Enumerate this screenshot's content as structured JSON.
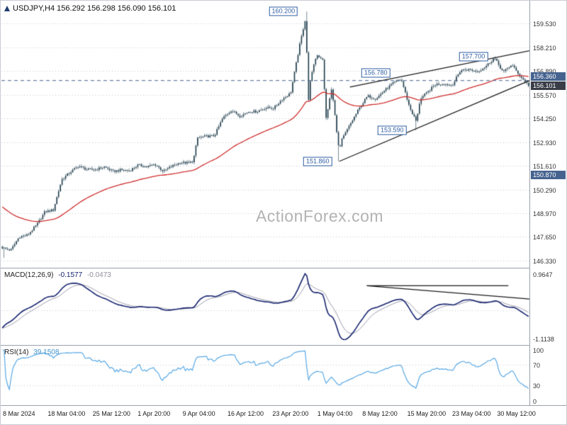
{
  "header": {
    "title": "USDJPY,H4 156.292 156.298 156.090 156.101"
  },
  "watermark": "ActionForex.com",
  "indicators": {
    "macd": {
      "label": "MACD(12,26,9)",
      "value_main": "-0.1577",
      "value_signal": "-0.0473"
    },
    "rsi": {
      "label": "RSI(14)",
      "value": "39.1508"
    }
  },
  "chart_data": {
    "type": "candlestick",
    "symbol": "USDJPY",
    "timeframe": "H4",
    "current_ohlc": {
      "open": 156.292,
      "high": 156.298,
      "low": 156.09,
      "close": 156.101
    },
    "x_labels": [
      "8 Mar 2024",
      "18 Mar 04:00",
      "25 Mar 12:00",
      "1 Apr 20:00",
      "9 Apr 04:00",
      "16 Apr 12:00",
      "23 Apr 20:00",
      "1 May 04:00",
      "8 May 12:00",
      "15 May 20:00",
      "23 May 04:00",
      "30 May 12:00"
    ],
    "y_ticks": [
      "159.530",
      "158.210",
      "156.890",
      "155.570",
      "154.250",
      "152.930",
      "151.610",
      "150.290",
      "148.970",
      "147.650",
      "146.330"
    ],
    "y_range": [
      146.09,
      160.61
    ],
    "dashed_level": 156.36,
    "axis_boxes": [
      {
        "label": "156.360",
        "price": 156.36,
        "dy": -6,
        "bg": "#46638f"
      },
      {
        "label": "156.101",
        "price": 156.36,
        "dy": 7,
        "bg": "#383d47"
      },
      {
        "label": "150.870",
        "price": 150.87,
        "dy": -6,
        "bg": "#46638f"
      }
    ],
    "annotations": [
      {
        "label": "160.200",
        "f": 0.534,
        "price": 160.2
      },
      {
        "label": "157.700",
        "f": 0.894,
        "price": 157.7
      },
      {
        "label": "156.780",
        "f": 0.709,
        "price": 156.78
      },
      {
        "label": "153.590",
        "f": 0.74,
        "price": 153.59
      },
      {
        "label": "151.860",
        "f": 0.599,
        "price": 151.86
      }
    ],
    "trendlines": [
      {
        "f1": 0.64,
        "p1": 151.86,
        "f2": 1.005,
        "p2": 156.42
      },
      {
        "f1": 0.66,
        "p1": 156.0,
        "f2": 1.005,
        "p2": 158.05
      }
    ],
    "price_anchors": [
      [
        0.0,
        147.05
      ],
      [
        0.016,
        146.9
      ],
      [
        0.032,
        147.65
      ],
      [
        0.048,
        147.75
      ],
      [
        0.065,
        148.3
      ],
      [
        0.081,
        149.05
      ],
      [
        0.097,
        149.15
      ],
      [
        0.113,
        150.85
      ],
      [
        0.129,
        151.25
      ],
      [
        0.145,
        151.6
      ],
      [
        0.161,
        151.4
      ],
      [
        0.177,
        151.4
      ],
      [
        0.194,
        151.55
      ],
      [
        0.21,
        151.3
      ],
      [
        0.226,
        151.38
      ],
      [
        0.242,
        151.35
      ],
      [
        0.258,
        151.65
      ],
      [
        0.274,
        151.55
      ],
      [
        0.29,
        151.7
      ],
      [
        0.306,
        151.3
      ],
      [
        0.323,
        151.6
      ],
      [
        0.339,
        151.8
      ],
      [
        0.355,
        151.76
      ],
      [
        0.363,
        151.9
      ],
      [
        0.371,
        153.17
      ],
      [
        0.387,
        153.25
      ],
      [
        0.403,
        153.28
      ],
      [
        0.419,
        154.27
      ],
      [
        0.435,
        154.7
      ],
      [
        0.452,
        154.38
      ],
      [
        0.468,
        154.63
      ],
      [
        0.484,
        154.64
      ],
      [
        0.5,
        154.84
      ],
      [
        0.516,
        154.82
      ],
      [
        0.532,
        155.33
      ],
      [
        0.548,
        155.66
      ],
      [
        0.565,
        158.33
      ],
      [
        0.577,
        159.95
      ],
      [
        0.581,
        154.9
      ],
      [
        0.585,
        156.35
      ],
      [
        0.597,
        157.8
      ],
      [
        0.609,
        157.55
      ],
      [
        0.615,
        154.2
      ],
      [
        0.626,
        155.95
      ],
      [
        0.64,
        152.4
      ],
      [
        0.645,
        153.05
      ],
      [
        0.661,
        153.92
      ],
      [
        0.677,
        154.75
      ],
      [
        0.694,
        155.5
      ],
      [
        0.71,
        155.35
      ],
      [
        0.726,
        155.8
      ],
      [
        0.742,
        156.2
      ],
      [
        0.758,
        156.45
      ],
      [
        0.774,
        154.85
      ],
      [
        0.787,
        154.05
      ],
      [
        0.794,
        155.35
      ],
      [
        0.806,
        155.65
      ],
      [
        0.823,
        156.15
      ],
      [
        0.839,
        156.18
      ],
      [
        0.855,
        156.1
      ],
      [
        0.871,
        156.94
      ],
      [
        0.887,
        156.98
      ],
      [
        0.903,
        156.86
      ],
      [
        0.919,
        157.16
      ],
      [
        0.935,
        157.62
      ],
      [
        0.952,
        156.82
      ],
      [
        0.968,
        157.25
      ],
      [
        0.984,
        156.6
      ],
      [
        1.0,
        156.1
      ]
    ],
    "wick_overrides": [
      {
        "f": 0.004,
        "low": 146.48
      },
      {
        "f": 0.577,
        "high": 160.2
      },
      {
        "f": 0.64,
        "low": 151.86
      },
      {
        "f": 0.787,
        "low": 153.59
      },
      {
        "f": 0.935,
        "high": 157.71
      },
      {
        "f": 0.999,
        "low": 156.09
      }
    ],
    "macd_axis_labels": [
      "0.9647",
      "-1.1138"
    ],
    "macd_trendlines": [
      {
        "x1": 0.692,
        "y1": 0.225,
        "x2": 0.96,
        "y2": 0.225
      },
      {
        "x1": 0.692,
        "y1": 0.225,
        "x2": 1.0,
        "y2": 0.4
      }
    ],
    "rsi_ticks": [
      100,
      70,
      30,
      0
    ],
    "colors": {
      "candle": "#1d3b4a",
      "ma": "#cf2e2e",
      "grid": "#c4c7d0",
      "dashed_level": "#44618f",
      "trendline": "#1a1a1a",
      "macd_main": "#16246e",
      "macd_signal": "#9a9aac",
      "rsi": "#57a7e3",
      "annotation": "#2f5fa3"
    }
  }
}
